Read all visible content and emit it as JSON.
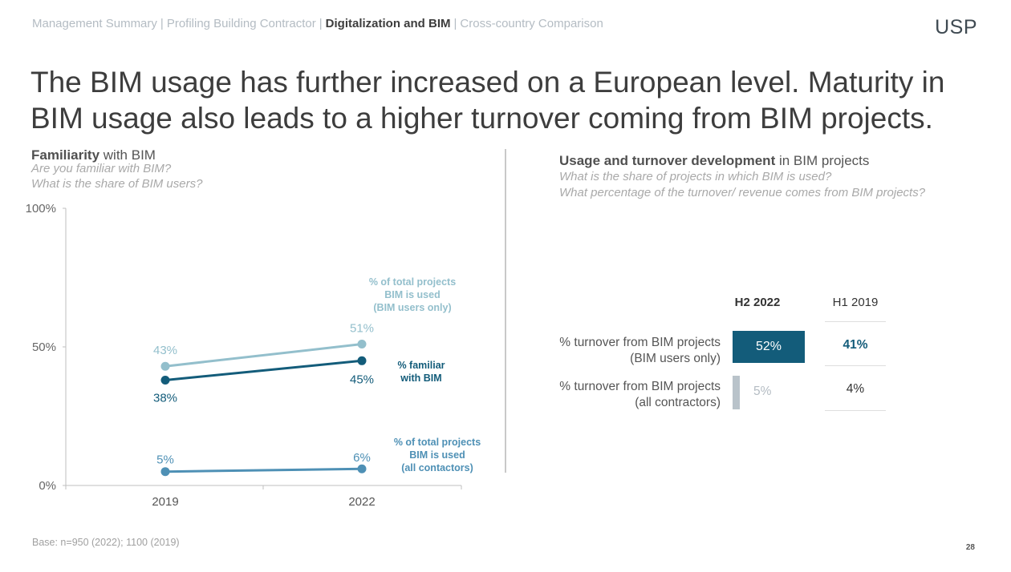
{
  "nav": {
    "items": [
      {
        "label": "Management Summary",
        "active": false
      },
      {
        "label": "Profiling Building Contractor",
        "active": false
      },
      {
        "label": "Digitalization and BIM",
        "active": true
      },
      {
        "label": "Cross-country Comparison",
        "active": false
      }
    ],
    "separator": "|"
  },
  "logo": "USP",
  "headline": "The BIM usage has further increased on a European level. Maturity in BIM usage also leads to a higher turnover coming from BIM projects.",
  "left_section": {
    "title_bold": "Familiarity",
    "title_rest": " with BIM",
    "question1": "Are you familiar with BIM?",
    "question2": "What is the share of BIM users?"
  },
  "right_section": {
    "title_bold": "Usage and turnover development",
    "title_rest": " in BIM projects",
    "question1": "What is the share of projects in which BIM is used?",
    "question2": "What percentage of the turnover/ revenue comes from BIM projects?"
  },
  "colors": {
    "light_teal": "#93bfcc",
    "dark_teal": "#135c7a",
    "mid_blue": "#4e90b5",
    "bar_grey": "#b9c3ca"
  },
  "chart_data": [
    {
      "type": "line",
      "x": [
        "2019",
        "2022"
      ],
      "ylim": [
        0,
        100
      ],
      "yticks": [
        "0%",
        "50%",
        "100%"
      ],
      "series": [
        {
          "name": "% of total projects BIM is used (BIM users only)",
          "label_lines": [
            "% of total projects",
            "BIM is used",
            "(BIM users only)"
          ],
          "values": [
            43,
            51
          ],
          "labels": [
            "43%",
            "51%"
          ],
          "color": "#93bfcc"
        },
        {
          "name": "% familiar with BIM",
          "label_lines": [
            "% familiar",
            "with BIM"
          ],
          "values": [
            38,
            45
          ],
          "labels": [
            "38%",
            "45%"
          ],
          "color": "#135c7a"
        },
        {
          "name": "% of total projects BIM is used (all contactors)",
          "label_lines": [
            "% of total projects",
            "BIM is used",
            "(all contactors)"
          ],
          "values": [
            5,
            6
          ],
          "labels": [
            "5%",
            "6%"
          ],
          "color": "#4e90b5"
        }
      ]
    },
    {
      "type": "table",
      "columns": [
        "H2 2022",
        "H1 2019"
      ],
      "rows": [
        {
          "label_line1": "% turnover from BIM projects",
          "label_line2": "(BIM users only)",
          "h2_2022": 52,
          "h2_2022_label": "52%",
          "h1_2019_label": "41%"
        },
        {
          "label_line1": "% turnover from BIM projects",
          "label_line2": "(all contractors)",
          "h2_2022": 5,
          "h2_2022_label": "5%",
          "h1_2019_label": "4%"
        }
      ]
    }
  ],
  "footer": {
    "base": "Base: n=950 (2022); 1100 (2019)",
    "page": "28"
  }
}
